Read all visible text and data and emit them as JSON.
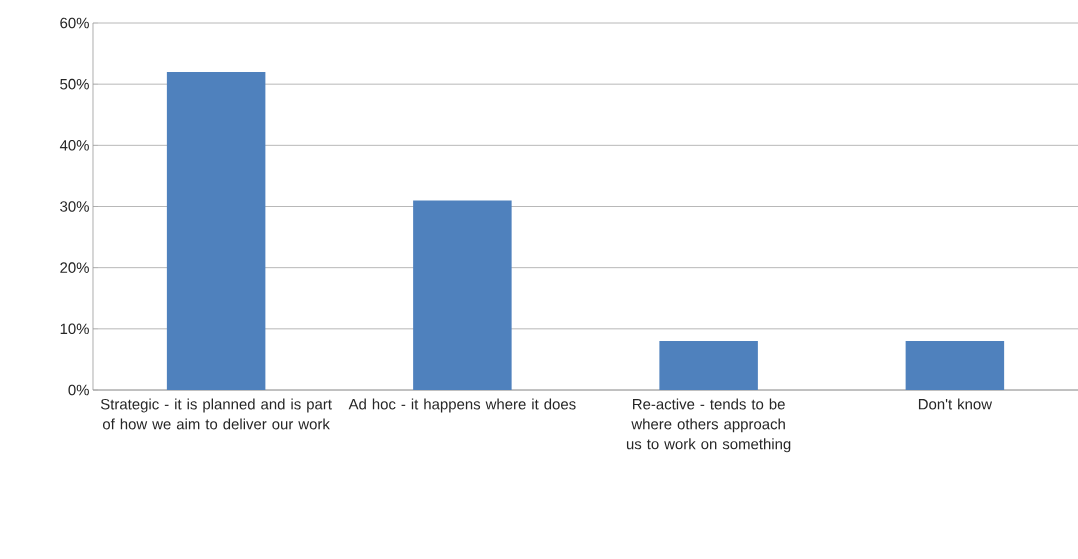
{
  "chart_data": {
    "type": "bar",
    "categories": [
      "Strategic - it is planned and is part of how we aim to deliver our work",
      "Ad hoc - it happens where it does",
      "Re-active - tends to be where others approach us to work on something",
      "Don't know"
    ],
    "values": [
      52,
      31,
      8,
      8
    ],
    "color": "#4f81bd",
    "ylim": [
      0,
      60
    ],
    "yticks": [
      {
        "value": 0,
        "label": "0%"
      },
      {
        "value": 10,
        "label": "10%"
      },
      {
        "value": 20,
        "label": "20%"
      },
      {
        "value": 30,
        "label": "30%"
      },
      {
        "value": 40,
        "label": "40%"
      },
      {
        "value": 50,
        "label": "50%"
      },
      {
        "value": 60,
        "label": "60%"
      }
    ],
    "grid": "y"
  }
}
